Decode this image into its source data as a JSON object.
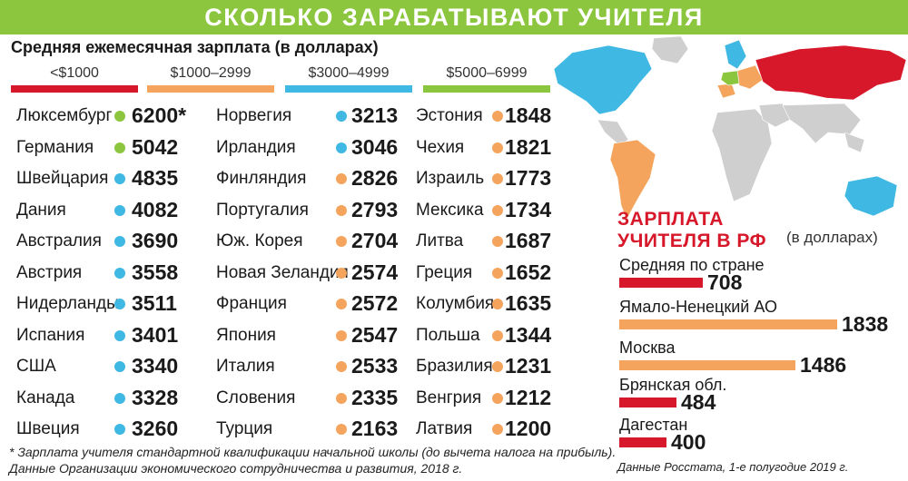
{
  "header": {
    "title": "СКОЛЬКО ЗАРАБАТЫВАЮТ УЧИТЕЛЯ"
  },
  "subtitle": "Средняя ежемесячная зарплата (в долларах)",
  "legend": [
    {
      "label": "<$1000",
      "color": "#d7182a"
    },
    {
      "label": "$1000–2999",
      "color": "#f4a45c"
    },
    {
      "label": "$3000–4999",
      "color": "#3fb8e4"
    },
    {
      "label": "$5000–6999",
      "color": "#8cc63e"
    }
  ],
  "chart_data": [
    {
      "type": "table",
      "title": "Средняя ежемесячная зарплата (в долларах)",
      "columns": [
        [
          {
            "country": "Люксембург",
            "value": "6200*",
            "tier": 3
          },
          {
            "country": "Германия",
            "value": "5042",
            "tier": 3
          },
          {
            "country": "Швейцария",
            "value": "4835",
            "tier": 2
          },
          {
            "country": "Дания",
            "value": "4082",
            "tier": 2
          },
          {
            "country": "Австралия",
            "value": "3690",
            "tier": 2
          },
          {
            "country": "Австрия",
            "value": "3558",
            "tier": 2
          },
          {
            "country": "Нидерланды",
            "value": "3511",
            "tier": 2
          },
          {
            "country": "Испания",
            "value": "3401",
            "tier": 2
          },
          {
            "country": "США",
            "value": "3340",
            "tier": 2
          },
          {
            "country": "Канада",
            "value": "3328",
            "tier": 2
          },
          {
            "country": "Швеция",
            "value": "3260",
            "tier": 2
          }
        ],
        [
          {
            "country": "Норвегия",
            "value": "3213",
            "tier": 2
          },
          {
            "country": "Ирландия",
            "value": "3046",
            "tier": 2
          },
          {
            "country": "Финляндия",
            "value": "2826",
            "tier": 1
          },
          {
            "country": "Португалия",
            "value": "2793",
            "tier": 1
          },
          {
            "country": "Юж. Корея",
            "value": "2704",
            "tier": 1
          },
          {
            "country": "Новая Зеландия",
            "value": "2574",
            "tier": 1
          },
          {
            "country": "Франция",
            "value": "2572",
            "tier": 1
          },
          {
            "country": "Япония",
            "value": "2547",
            "tier": 1
          },
          {
            "country": "Италия",
            "value": "2533",
            "tier": 1
          },
          {
            "country": "Словения",
            "value": "2335",
            "tier": 1
          },
          {
            "country": "Турция",
            "value": "2163",
            "tier": 1
          }
        ],
        [
          {
            "country": "Эстония",
            "value": "1848",
            "tier": 1
          },
          {
            "country": "Чехия",
            "value": "1821",
            "tier": 1
          },
          {
            "country": "Израиль",
            "value": "1773",
            "tier": 1
          },
          {
            "country": "Мексика",
            "value": "1734",
            "tier": 1
          },
          {
            "country": "Литва",
            "value": "1687",
            "tier": 1
          },
          {
            "country": "Греция",
            "value": "1652",
            "tier": 1
          },
          {
            "country": "Колумбия",
            "value": "1635",
            "tier": 1
          },
          {
            "country": "Польша",
            "value": "1344",
            "tier": 1
          },
          {
            "country": "Бразилия",
            "value": "1231",
            "tier": 1
          },
          {
            "country": "Венгрия",
            "value": "1212",
            "tier": 1
          },
          {
            "country": "Латвия",
            "value": "1200",
            "tier": 1
          }
        ]
      ]
    },
    {
      "type": "bar",
      "title": "ЗАРПЛАТА УЧИТЕЛЯ В РФ",
      "title_lines": [
        "ЗАРПЛАТА",
        "УЧИТЕЛЯ В РФ"
      ],
      "unit_label": "(в долларах)",
      "categories": [
        "Средняя по стране",
        "Ямало-Ненецкий АО",
        "Москва",
        "Брянская обл.",
        "Дагестан"
      ],
      "values": [
        708,
        1838,
        1486,
        484,
        400
      ],
      "colors": [
        "#d7182a",
        "#f4a45c",
        "#f4a45c",
        "#d7182a",
        "#d7182a"
      ]
    }
  ],
  "footnotes": [
    "* Зарплата учителя стандартной квалификации начальной школы (до вычета налога на прибыль).",
    "Данные Организации экономического сотрудничества и развития, 2018 г."
  ],
  "rf_source": "Данные Росстата, 1-е полугодие 2019 г."
}
